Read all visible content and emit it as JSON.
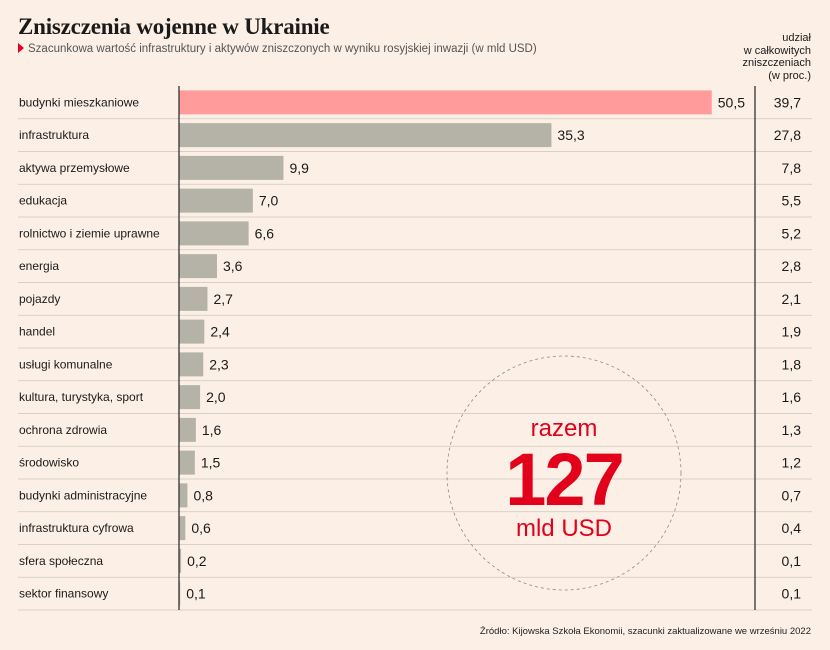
{
  "title": "Zniszczenia wojenne w Ukrainie",
  "subtitle": "Szacunkowa wartość infrastruktury i aktywów zniszczonych w wyniku rosyjskiej inwazji (w mld USD)",
  "share_header": "udział\nw całkowitych\nzniszczeniach\n(w proc.)",
  "source": "Źródło: Kijowska Szkoła Ekonomii, szacunki zaktualizowane we wrześniu 2022",
  "total": {
    "label_top": "razem",
    "value": "127",
    "label_bottom": "mld USD"
  },
  "colors": {
    "highlight": "#ff9b9b",
    "bar": "#b5b2a8",
    "accent": "#e3001b",
    "background": "#fcf0e6"
  },
  "chart_data": {
    "type": "bar",
    "orientation": "horizontal",
    "categories": [
      "budynki mieszkaniowe",
      "infrastruktura",
      "aktywa przemysłowe",
      "edukacja",
      "rolnictwo i ziemie uprawne",
      "energia",
      "pojazdy",
      "handel",
      "usługi komunalne",
      "kultura, turystyka, sport",
      "ochrona zdrowia",
      "środowisko",
      "budynki administracyjne",
      "infrastruktura cyfrowa",
      "sfera społeczna",
      "sektor finansowy"
    ],
    "values": [
      50.5,
      35.3,
      9.9,
      7.0,
      6.6,
      3.6,
      2.7,
      2.4,
      2.3,
      2.0,
      1.6,
      1.5,
      0.8,
      0.6,
      0.2,
      0.1
    ],
    "value_labels": [
      "50,5",
      "35,3",
      "9,9",
      "7,0",
      "6,6",
      "3,6",
      "2,7",
      "2,4",
      "2,3",
      "2,0",
      "1,6",
      "1,5",
      "0,8",
      "0,6",
      "0,2",
      "0,1"
    ],
    "share_labels": [
      "39,7",
      "27,8",
      "7,8",
      "5,5",
      "5,2",
      "2,8",
      "2,1",
      "1,9",
      "1,8",
      "1,6",
      "1,3",
      "1,2",
      "0,7",
      "0,4",
      "0,1",
      "0,1"
    ],
    "highlight_index": 0,
    "grid": false,
    "legend": "none"
  }
}
